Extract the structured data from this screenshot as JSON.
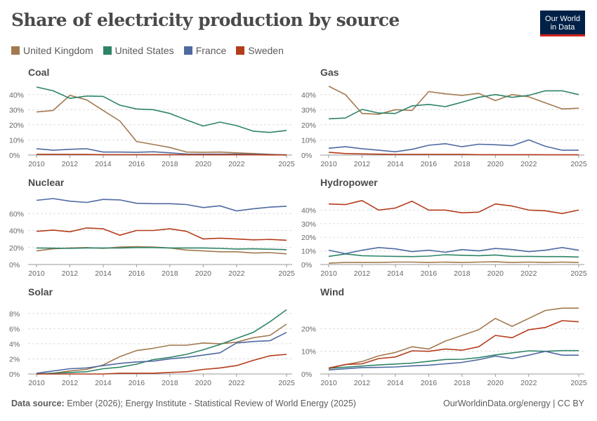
{
  "title": "Share of electricity production by source",
  "logo": {
    "line1": "Our World",
    "line2": "in Data"
  },
  "legend": [
    {
      "name": "United Kingdom",
      "color": "#a2794f"
    },
    {
      "name": "United States",
      "color": "#2e8467"
    },
    {
      "name": "France",
      "color": "#4e6aa1"
    },
    {
      "name": "Sweden",
      "color": "#b43c1b"
    }
  ],
  "footer": {
    "source_label": "Data source:",
    "source_text": "Ember (2026); Energy Institute - Statistical Review of World Energy (2025)",
    "right": "OurWorldinData.org/energy | CC BY"
  },
  "chart_data": [
    {
      "type": "line",
      "title": "Coal",
      "ylim": [
        0,
        45
      ],
      "yticks": [
        0,
        10,
        20,
        30,
        40
      ],
      "ytick_suffix": "%",
      "x": [
        2010,
        2011,
        2012,
        2013,
        2014,
        2015,
        2016,
        2017,
        2018,
        2019,
        2020,
        2021,
        2022,
        2023,
        2024,
        2025
      ],
      "xticks": [
        2010,
        2012,
        2014,
        2016,
        2018,
        2020,
        2022,
        2025
      ],
      "series": [
        {
          "name": "United Kingdom",
          "values": [
            28.5,
            29.5,
            39.5,
            36.5,
            29.5,
            22.5,
            9,
            7,
            5,
            2,
            1.8,
            2,
            1.5,
            1,
            0.5,
            0
          ]
        },
        {
          "name": "United States",
          "values": [
            45,
            42.5,
            37.5,
            39,
            38.8,
            33,
            30.5,
            30,
            27.5,
            23.2,
            19.2,
            21.8,
            19.5,
            15.8,
            15,
            16.3
          ]
        },
        {
          "name": "France",
          "values": [
            4.2,
            3.2,
            3.8,
            4.2,
            2,
            2,
            1.8,
            2.2,
            1.5,
            0.7,
            0.6,
            0.6,
            0.7,
            0.5,
            0.3,
            0.2
          ]
        },
        {
          "name": "Sweden",
          "values": [
            0.5,
            0.5,
            0.4,
            0.4,
            0.3,
            0.3,
            0.3,
            0.3,
            0.3,
            0.2,
            0.2,
            0.2,
            0.2,
            0.2,
            0.1,
            0.1
          ]
        }
      ]
    },
    {
      "type": "line",
      "title": "Gas",
      "ylim": [
        0,
        45
      ],
      "yticks": [
        0,
        10,
        20,
        30,
        40
      ],
      "ytick_suffix": "%",
      "x": [
        2010,
        2011,
        2012,
        2013,
        2014,
        2015,
        2016,
        2017,
        2018,
        2019,
        2020,
        2021,
        2022,
        2023,
        2024,
        2025
      ],
      "xticks": [
        2010,
        2012,
        2014,
        2016,
        2018,
        2020,
        2022,
        2025
      ],
      "series": [
        {
          "name": "United Kingdom",
          "values": [
            45.5,
            40,
            27.5,
            27,
            30,
            29.5,
            42,
            40.5,
            39.5,
            40.8,
            36,
            40,
            38.5,
            34.5,
            30.5,
            31
          ]
        },
        {
          "name": "United States",
          "values": [
            24,
            24.5,
            30.2,
            27.8,
            27.5,
            32.5,
            33.5,
            32,
            35,
            38.2,
            40,
            38.2,
            39.5,
            42.5,
            42.5,
            40
          ]
        },
        {
          "name": "France",
          "values": [
            4.5,
            5.5,
            4.2,
            3.2,
            2.2,
            3.8,
            6.5,
            7.5,
            5.5,
            7.2,
            6.8,
            6.2,
            10,
            5.8,
            3.2,
            3.2
          ]
        },
        {
          "name": "Sweden",
          "values": [
            1.8,
            1,
            0.8,
            0.6,
            0.4,
            0.4,
            0.4,
            0.4,
            0.4,
            0.3,
            0.3,
            0.3,
            0.3,
            0.2,
            0.2,
            0.2
          ]
        }
      ]
    },
    {
      "type": "line",
      "title": "Nuclear",
      "ylim": [
        0,
        80
      ],
      "yticks": [
        0,
        20,
        40,
        60
      ],
      "ytick_suffix": "%",
      "x": [
        2010,
        2011,
        2012,
        2013,
        2014,
        2015,
        2016,
        2017,
        2018,
        2019,
        2020,
        2021,
        2022,
        2023,
        2024,
        2025
      ],
      "xticks": [
        2010,
        2012,
        2014,
        2016,
        2018,
        2020,
        2022,
        2025
      ],
      "series": [
        {
          "name": "United Kingdom",
          "values": [
            16,
            18.5,
            19.5,
            20,
            19,
            20.5,
            21,
            20.5,
            19.5,
            17,
            16,
            15,
            15,
            13.5,
            14,
            12.5
          ]
        },
        {
          "name": "United States",
          "values": [
            19.5,
            19.2,
            19,
            19.5,
            19.5,
            19.5,
            20,
            20,
            19.5,
            19.5,
            19.5,
            19,
            18.2,
            18.5,
            18,
            17.5
          ]
        },
        {
          "name": "France",
          "values": [
            75.5,
            77.5,
            74.5,
            73,
            76.5,
            76,
            72,
            71.5,
            71.5,
            70.5,
            67,
            69,
            63,
            65.5,
            67.5,
            68.5
          ]
        },
        {
          "name": "Sweden",
          "values": [
            39,
            40.5,
            38.5,
            43,
            42,
            34.5,
            40,
            40,
            42,
            39,
            30,
            31,
            30,
            29,
            29.5,
            28.5
          ]
        }
      ]
    },
    {
      "type": "line",
      "title": "Hydropower",
      "ylim": [
        0,
        50
      ],
      "yticks": [
        0,
        10,
        20,
        30,
        40
      ],
      "ytick_suffix": "%",
      "x": [
        2010,
        2011,
        2012,
        2013,
        2014,
        2015,
        2016,
        2017,
        2018,
        2019,
        2020,
        2021,
        2022,
        2023,
        2024,
        2025
      ],
      "xticks": [
        2010,
        2012,
        2014,
        2016,
        2018,
        2020,
        2022,
        2025
      ],
      "series": [
        {
          "name": "United Kingdom",
          "values": [
            1,
            1.5,
            1.5,
            1.5,
            1.8,
            1.8,
            1.5,
            1.8,
            1.5,
            1.8,
            2,
            1.5,
            1.8,
            1.5,
            1.8,
            1.5
          ]
        },
        {
          "name": "United States",
          "values": [
            6,
            7.8,
            6.5,
            6.2,
            6,
            5.8,
            6.2,
            7.2,
            6.8,
            6.5,
            7,
            6,
            6,
            5.8,
            5.8,
            5.5
          ]
        },
        {
          "name": "France",
          "values": [
            10.5,
            8,
            10.5,
            12.5,
            11.5,
            9.5,
            10.5,
            9,
            11,
            10,
            11.8,
            11,
            9.5,
            10.5,
            12.5,
            10.5
          ]
        },
        {
          "name": "Sweden",
          "values": [
            44.5,
            44,
            47,
            40,
            41.5,
            46.5,
            40,
            40,
            38,
            38.5,
            44.5,
            43,
            40,
            39.5,
            37.5,
            40
          ]
        }
      ]
    },
    {
      "type": "line",
      "title": "Solar",
      "ylim": [
        0,
        9
      ],
      "yticks": [
        0,
        2,
        4,
        6,
        8
      ],
      "ytick_suffix": "%",
      "x": [
        2010,
        2011,
        2012,
        2013,
        2014,
        2015,
        2016,
        2017,
        2018,
        2019,
        2020,
        2021,
        2022,
        2023,
        2024,
        2025
      ],
      "xticks": [
        2010,
        2012,
        2014,
        2016,
        2018,
        2020,
        2022,
        2025
      ],
      "series": [
        {
          "name": "United Kingdom",
          "values": [
            0,
            0.1,
            0.4,
            0.6,
            1.2,
            2.3,
            3.1,
            3.4,
            3.8,
            3.8,
            4.1,
            4,
            4.2,
            4.8,
            5.1,
            6.6
          ]
        },
        {
          "name": "United States",
          "values": [
            0,
            0.1,
            0.2,
            0.3,
            0.7,
            0.9,
            1.3,
            1.9,
            2.2,
            2.6,
            3.2,
            3.9,
            4.7,
            5.5,
            6.9,
            8.5
          ]
        },
        {
          "name": "France",
          "values": [
            0.1,
            0.4,
            0.7,
            0.8,
            1.1,
            1.4,
            1.6,
            1.7,
            2,
            2.2,
            2.5,
            2.8,
            4.1,
            4.3,
            4.4,
            5.5
          ]
        },
        {
          "name": "Sweden",
          "values": [
            0,
            0,
            0,
            0,
            0,
            0.1,
            0.1,
            0.1,
            0.2,
            0.3,
            0.6,
            0.8,
            1.1,
            1.8,
            2.4,
            2.6
          ]
        }
      ]
    },
    {
      "type": "line",
      "title": "Wind",
      "ylim": [
        0,
        30
      ],
      "yticks": [
        0,
        10,
        20
      ],
      "ytick_suffix": "%",
      "x": [
        2010,
        2011,
        2012,
        2013,
        2014,
        2015,
        2016,
        2017,
        2018,
        2019,
        2020,
        2021,
        2022,
        2023,
        2024,
        2025
      ],
      "xticks": [
        2010,
        2012,
        2014,
        2016,
        2018,
        2020,
        2022,
        2025
      ],
      "series": [
        {
          "name": "United Kingdom",
          "values": [
            2.7,
            4.1,
            5.5,
            8,
            9.5,
            12,
            11,
            14.5,
            17,
            19.5,
            24.5,
            21,
            24.5,
            28,
            29,
            29
          ]
        },
        {
          "name": "United States",
          "values": [
            2.5,
            3,
            3.5,
            4,
            4.4,
            4.8,
            5.6,
            6.4,
            6.5,
            7.2,
            8.4,
            9.3,
            10.2,
            10,
            10.3,
            10.3
          ]
        },
        {
          "name": "France",
          "values": [
            1.8,
            2.3,
            2.8,
            2.9,
            3.1,
            3.6,
            3.9,
            4.5,
            5.1,
            6.3,
            7.9,
            6.8,
            8.3,
            10,
            8.3,
            8.3
          ]
        },
        {
          "name": "Sweden",
          "values": [
            2.4,
            4.2,
            4.5,
            6.8,
            7.5,
            10.2,
            10,
            11,
            10.5,
            12,
            17,
            16,
            19.5,
            20.5,
            23.5,
            23
          ]
        }
      ]
    }
  ]
}
